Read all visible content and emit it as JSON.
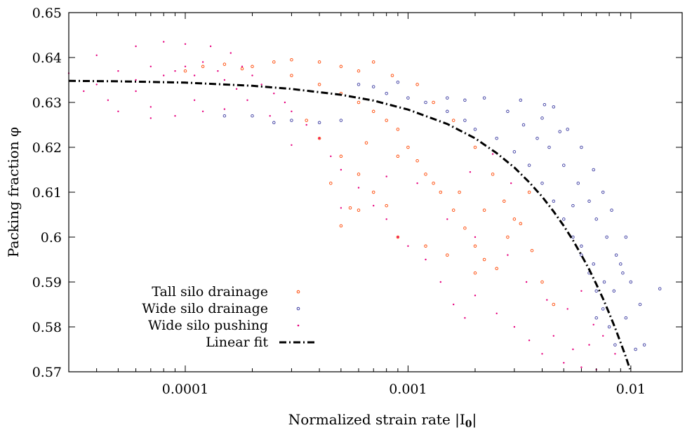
{
  "chart_data": {
    "type": "scatter",
    "xscale": "log",
    "xlim": [
      3e-05,
      0.017
    ],
    "ylim": [
      0.57,
      0.65
    ],
    "xlabel": "Normalized strain rate |I",
    "xlabel_sub": "0",
    "xlabel_end": "|",
    "ylabel": "Packing fraction φ",
    "xticks": [
      {
        "value": 0.0001,
        "label": "0.0001"
      },
      {
        "value": 0.001,
        "label": "0.001"
      },
      {
        "value": 0.01,
        "label": "0.01"
      }
    ],
    "yticks": [
      {
        "value": 0.57,
        "label": "0.57"
      },
      {
        "value": 0.58,
        "label": "0.58"
      },
      {
        "value": 0.59,
        "label": "0.59"
      },
      {
        "value": 0.6,
        "label": "0.6"
      },
      {
        "value": 0.61,
        "label": "0.61"
      },
      {
        "value": 0.62,
        "label": "0.62"
      },
      {
        "value": 0.63,
        "label": "0.63"
      },
      {
        "value": 0.64,
        "label": "0.64"
      },
      {
        "value": 0.65,
        "label": "0.65"
      }
    ],
    "grid": false,
    "legend_position": "bottom-left",
    "series": [
      {
        "name": "Tall silo drainage",
        "marker": "open-circle",
        "color": "#ff4500",
        "points": [
          [
            0.0002,
            0.638
          ],
          [
            0.00025,
            0.639
          ],
          [
            0.0003,
            0.6395
          ],
          [
            0.0004,
            0.639
          ],
          [
            0.0005,
            0.638
          ],
          [
            0.0006,
            0.637
          ],
          [
            0.0003,
            0.636
          ],
          [
            0.0004,
            0.634
          ],
          [
            0.0005,
            0.632
          ],
          [
            0.0006,
            0.63
          ],
          [
            0.0007,
            0.628
          ],
          [
            0.0008,
            0.626
          ],
          [
            0.0009,
            0.624
          ],
          [
            0.001,
            0.62
          ],
          [
            0.0011,
            0.617
          ],
          [
            0.0012,
            0.614
          ],
          [
            0.0014,
            0.61
          ],
          [
            0.0016,
            0.606
          ],
          [
            0.0018,
            0.602
          ],
          [
            0.002,
            0.598
          ],
          [
            0.0022,
            0.595
          ],
          [
            0.0025,
            0.593
          ],
          [
            0.0028,
            0.6
          ],
          [
            0.003,
            0.604
          ],
          [
            0.00035,
            0.626
          ],
          [
            0.0004,
            0.622
          ],
          [
            0.0005,
            0.618
          ],
          [
            0.0006,
            0.614
          ],
          [
            0.0007,
            0.61
          ],
          [
            0.0008,
            0.607
          ],
          [
            0.00045,
            0.612
          ],
          [
            0.0006,
            0.606
          ],
          [
            0.0009,
            0.6
          ],
          [
            0.0012,
            0.598
          ],
          [
            0.0015,
            0.596
          ],
          [
            0.002,
            0.592
          ],
          [
            0.0001,
            0.637
          ],
          [
            0.00012,
            0.638
          ],
          [
            0.00015,
            0.6385
          ],
          [
            0.00018,
            0.6375
          ],
          [
            0.0007,
            0.639
          ],
          [
            0.00085,
            0.636
          ],
          [
            0.0011,
            0.634
          ],
          [
            0.0013,
            0.63
          ],
          [
            0.0016,
            0.626
          ],
          [
            0.002,
            0.62
          ],
          [
            0.0024,
            0.614
          ],
          [
            0.0027,
            0.608
          ],
          [
            0.0032,
            0.603
          ],
          [
            0.0036,
            0.597
          ],
          [
            0.004,
            0.59
          ],
          [
            0.0045,
            0.585
          ],
          [
            0.0005,
            0.6025
          ],
          [
            0.00055,
            0.6065
          ],
          [
            0.00065,
            0.621
          ],
          [
            0.0009,
            0.618
          ],
          [
            0.0013,
            0.612
          ],
          [
            0.0017,
            0.61
          ],
          [
            0.0022,
            0.606
          ],
          [
            0.0035,
            0.61
          ]
        ]
      },
      {
        "name": "Wide silo drainage",
        "marker": "open-circle",
        "color": "#3a3aa0",
        "points": [
          [
            0.00015,
            0.627
          ],
          [
            0.0002,
            0.627
          ],
          [
            0.00025,
            0.6255
          ],
          [
            0.0003,
            0.626
          ],
          [
            0.0004,
            0.6255
          ],
          [
            0.0005,
            0.626
          ],
          [
            0.0008,
            0.632
          ],
          [
            0.001,
            0.631
          ],
          [
            0.0012,
            0.63
          ],
          [
            0.0015,
            0.628
          ],
          [
            0.0018,
            0.626
          ],
          [
            0.002,
            0.624
          ],
          [
            0.0025,
            0.622
          ],
          [
            0.003,
            0.619
          ],
          [
            0.0035,
            0.616
          ],
          [
            0.004,
            0.612
          ],
          [
            0.0045,
            0.608
          ],
          [
            0.005,
            0.604
          ],
          [
            0.0055,
            0.6
          ],
          [
            0.006,
            0.596
          ],
          [
            0.0065,
            0.592
          ],
          [
            0.007,
            0.588
          ],
          [
            0.0075,
            0.584
          ],
          [
            0.008,
            0.58
          ],
          [
            0.0085,
            0.576
          ],
          [
            0.009,
            0.594
          ],
          [
            0.0095,
            0.6
          ],
          [
            0.01,
            0.59
          ],
          [
            0.011,
            0.585
          ],
          [
            0.0135,
            0.5885
          ],
          [
            0.0105,
            0.575
          ],
          [
            0.0115,
            0.576
          ],
          [
            0.0022,
            0.631
          ],
          [
            0.0028,
            0.628
          ],
          [
            0.0033,
            0.625
          ],
          [
            0.0038,
            0.622
          ],
          [
            0.0043,
            0.62
          ],
          [
            0.005,
            0.616
          ],
          [
            0.0058,
            0.612
          ],
          [
            0.0065,
            0.608
          ],
          [
            0.007,
            0.604
          ],
          [
            0.0078,
            0.6
          ],
          [
            0.0086,
            0.596
          ],
          [
            0.0092,
            0.592
          ],
          [
            0.0045,
            0.629
          ],
          [
            0.0052,
            0.624
          ],
          [
            0.006,
            0.62
          ],
          [
            0.0068,
            0.615
          ],
          [
            0.0075,
            0.61
          ],
          [
            0.0082,
            0.606
          ],
          [
            0.0032,
            0.6305
          ],
          [
            0.004,
            0.6265
          ],
          [
            0.0048,
            0.6235
          ],
          [
            0.006,
            0.598
          ],
          [
            0.0068,
            0.594
          ],
          [
            0.0076,
            0.59
          ],
          [
            0.0084,
            0.588
          ],
          [
            0.0095,
            0.582
          ],
          [
            0.0015,
            0.631
          ],
          [
            0.0018,
            0.6305
          ],
          [
            0.0006,
            0.634
          ],
          [
            0.0007,
            0.6335
          ],
          [
            0.0009,
            0.6345
          ],
          [
            0.0041,
            0.6295
          ],
          [
            0.0055,
            0.607
          ],
          [
            0.007,
            0.582
          ]
        ]
      },
      {
        "name": "Wide silo pushing",
        "marker": "dot",
        "color": "#e6007e",
        "points": [
          [
            4e-05,
            0.634
          ],
          [
            4e-05,
            0.6405
          ],
          [
            5e-05,
            0.637
          ],
          [
            5e-05,
            0.628
          ],
          [
            6e-05,
            0.635
          ],
          [
            6e-05,
            0.6425
          ],
          [
            7e-05,
            0.638
          ],
          [
            7e-05,
            0.629
          ],
          [
            8e-05,
            0.636
          ],
          [
            8e-05,
            0.6435
          ],
          [
            9e-05,
            0.637
          ],
          [
            9e-05,
            0.627
          ],
          [
            0.0001,
            0.638
          ],
          [
            0.0001,
            0.643
          ],
          [
            0.00011,
            0.636
          ],
          [
            0.00012,
            0.639
          ],
          [
            0.00012,
            0.628
          ],
          [
            0.00013,
            0.6425
          ],
          [
            0.00014,
            0.637
          ],
          [
            0.00015,
            0.635
          ],
          [
            0.00016,
            0.641
          ],
          [
            0.00017,
            0.633
          ],
          [
            0.00018,
            0.638
          ],
          [
            0.0002,
            0.636
          ],
          [
            0.00022,
            0.634
          ],
          [
            0.00025,
            0.632
          ],
          [
            0.00028,
            0.63
          ],
          [
            0.0003,
            0.628
          ],
          [
            0.00035,
            0.625
          ],
          [
            0.0004,
            0.622
          ],
          [
            0.00045,
            0.618
          ],
          [
            0.0005,
            0.615
          ],
          [
            0.0006,
            0.611
          ],
          [
            0.0007,
            0.607
          ],
          [
            0.0008,
            0.604
          ],
          [
            0.0009,
            0.6
          ],
          [
            0.001,
            0.598
          ],
          [
            0.0012,
            0.595
          ],
          [
            0.0014,
            0.59
          ],
          [
            0.0016,
            0.585
          ],
          [
            0.0018,
            0.582
          ],
          [
            0.002,
            0.587
          ],
          [
            0.0025,
            0.583
          ],
          [
            0.003,
            0.58
          ],
          [
            0.0035,
            0.577
          ],
          [
            0.004,
            0.574
          ],
          [
            0.0045,
            0.578
          ],
          [
            0.005,
            0.572
          ],
          [
            0.0055,
            0.575
          ],
          [
            0.006,
            0.571
          ],
          [
            0.0065,
            0.576
          ],
          [
            0.007,
            0.5705
          ],
          [
            0.0075,
            0.578
          ],
          [
            0.0085,
            0.574
          ],
          [
            6e-05,
            0.6325
          ],
          [
            3e-05,
            0.6365
          ],
          [
            3.5e-05,
            0.6325
          ],
          [
            4.5e-05,
            0.6305
          ],
          [
            7e-05,
            0.6265
          ],
          [
            0.00011,
            0.6305
          ],
          [
            0.0003,
            0.6205
          ],
          [
            0.0005,
            0.6065
          ],
          [
            0.0008,
            0.6135
          ],
          [
            0.0011,
            0.612
          ],
          [
            0.0015,
            0.604
          ],
          [
            0.002,
            0.6
          ],
          [
            0.0028,
            0.596
          ],
          [
            0.0034,
            0.59
          ],
          [
            0.0042,
            0.586
          ],
          [
            0.0052,
            0.584
          ],
          [
            0.006,
            0.588
          ],
          [
            0.0068,
            0.5805
          ],
          [
            0.0019,
            0.6145
          ],
          [
            0.0024,
            0.6185
          ],
          [
            0.0029,
            0.612
          ],
          [
            0.00015,
            0.6285
          ],
          [
            0.00019,
            0.6305
          ],
          [
            0.00024,
            0.627
          ]
        ]
      },
      {
        "name": "Linear fit",
        "marker": "dash-dot-line",
        "color": "#000000",
        "points": [
          [
            3e-05,
            0.6348
          ],
          [
            5e-05,
            0.6347
          ],
          [
            0.0001,
            0.6344
          ],
          [
            0.0002,
            0.6337
          ],
          [
            0.0003,
            0.633
          ],
          [
            0.0005,
            0.6317
          ],
          [
            0.0007,
            0.6304
          ],
          [
            0.001,
            0.6284
          ],
          [
            0.0015,
            0.6252
          ],
          [
            0.002,
            0.622
          ],
          [
            0.0025,
            0.6187
          ],
          [
            0.003,
            0.6155
          ],
          [
            0.0035,
            0.6122
          ],
          [
            0.004,
            0.609
          ],
          [
            0.0045,
            0.6057
          ],
          [
            0.005,
            0.6025
          ],
          [
            0.0055,
            0.5993
          ],
          [
            0.006,
            0.596
          ],
          [
            0.0065,
            0.5928
          ],
          [
            0.007,
            0.5895
          ],
          [
            0.0075,
            0.5863
          ],
          [
            0.008,
            0.583
          ],
          [
            0.0085,
            0.5798
          ],
          [
            0.009,
            0.5765
          ],
          [
            0.0095,
            0.5733
          ],
          [
            0.0099,
            0.5706
          ]
        ]
      }
    ]
  }
}
